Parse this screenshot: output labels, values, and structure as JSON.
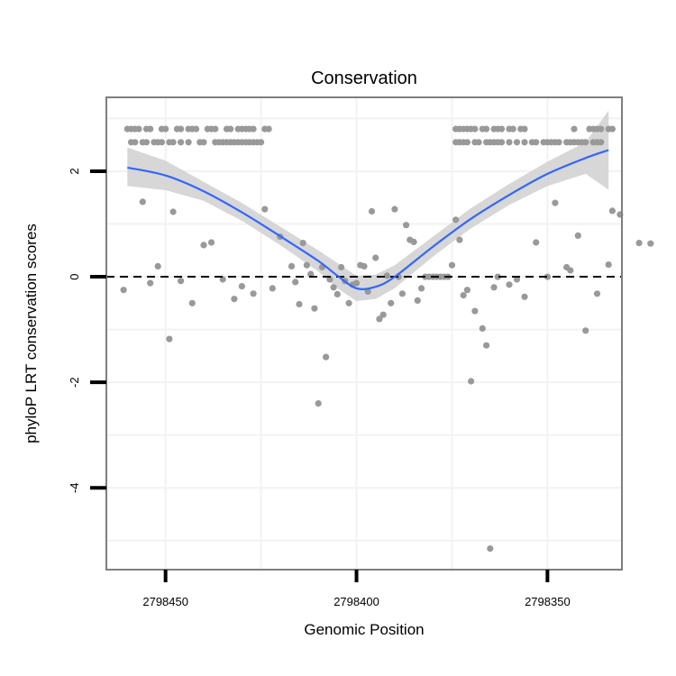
{
  "chart_data": {
    "type": "scatter",
    "title": "Conservation",
    "xlabel": "Genomic Position",
    "ylabel": "phyloP LRT conservation scores",
    "x_reversed": true,
    "xlim": [
      2798465.5,
      2798330.5
    ],
    "ylim": [
      -5.55,
      3.4
    ],
    "x_ticks": [
      2798450,
      2798400,
      2798350
    ],
    "x_tick_labels": [
      "2798450",
      "2798400",
      "2798350"
    ],
    "y_ticks": [
      -4,
      -2,
      0,
      2
    ],
    "y_tick_labels": [
      "-4",
      "-2",
      "0",
      "2"
    ],
    "reference_line": {
      "y": 0,
      "style": "dashed"
    },
    "colors": {
      "points": "#999999",
      "smooth": "#3366ff",
      "band": "#d3d3d3",
      "panel_border": "#7f7f7f",
      "grid": "#f2f2f2"
    },
    "smooth_x": [
      2798460,
      2798450,
      2798440,
      2798430,
      2798420,
      2798410,
      2798405,
      2798400,
      2798395,
      2798390,
      2798380,
      2798370,
      2798360,
      2798350,
      2798340,
      2798334
    ],
    "smooth_y": [
      2.07,
      1.92,
      1.62,
      1.22,
      0.77,
      0.3,
      0.02,
      -0.22,
      -0.19,
      0.0,
      0.57,
      1.1,
      1.55,
      1.95,
      2.25,
      2.4
    ],
    "band_upper": [
      2.45,
      2.2,
      1.8,
      1.4,
      0.95,
      0.5,
      0.26,
      0.02,
      0.04,
      0.22,
      0.76,
      1.3,
      1.76,
      2.18,
      2.55,
      3.15
    ],
    "band_lower": [
      1.72,
      1.64,
      1.44,
      1.06,
      0.6,
      0.1,
      -0.22,
      -0.46,
      -0.42,
      -0.22,
      0.38,
      0.92,
      1.36,
      1.72,
      1.95,
      1.65
    ],
    "points": [
      [
        2798460,
        2.8
      ],
      [
        2798459,
        2.8
      ],
      [
        2798458,
        2.8
      ],
      [
        2798457,
        2.8
      ],
      [
        2798455,
        2.8
      ],
      [
        2798454,
        2.8
      ],
      [
        2798451,
        2.8
      ],
      [
        2798450,
        2.8
      ],
      [
        2798447,
        2.8
      ],
      [
        2798446,
        2.8
      ],
      [
        2798444,
        2.8
      ],
      [
        2798443,
        2.8
      ],
      [
        2798442,
        2.8
      ],
      [
        2798439,
        2.8
      ],
      [
        2798438,
        2.8
      ],
      [
        2798437,
        2.8
      ],
      [
        2798434,
        2.8
      ],
      [
        2798433,
        2.8
      ],
      [
        2798431,
        2.8
      ],
      [
        2798430,
        2.8
      ],
      [
        2798429,
        2.8
      ],
      [
        2798428,
        2.8
      ],
      [
        2798427,
        2.8
      ],
      [
        2798424,
        2.8
      ],
      [
        2798423,
        2.8
      ],
      [
        2798459,
        2.55
      ],
      [
        2798458,
        2.55
      ],
      [
        2798456,
        2.55
      ],
      [
        2798455,
        2.55
      ],
      [
        2798453,
        2.55
      ],
      [
        2798452,
        2.55
      ],
      [
        2798451,
        2.55
      ],
      [
        2798449,
        2.55
      ],
      [
        2798448,
        2.55
      ],
      [
        2798446,
        2.55
      ],
      [
        2798444,
        2.55
      ],
      [
        2798441,
        2.55
      ],
      [
        2798440,
        2.55
      ],
      [
        2798437,
        2.55
      ],
      [
        2798436,
        2.55
      ],
      [
        2798435,
        2.55
      ],
      [
        2798434,
        2.55
      ],
      [
        2798433,
        2.55
      ],
      [
        2798432,
        2.55
      ],
      [
        2798431,
        2.55
      ],
      [
        2798430,
        2.55
      ],
      [
        2798429,
        2.55
      ],
      [
        2798428,
        2.55
      ],
      [
        2798427,
        2.55
      ],
      [
        2798426,
        2.55
      ],
      [
        2798425,
        2.55
      ],
      [
        2798374,
        2.8
      ],
      [
        2798373,
        2.8
      ],
      [
        2798372,
        2.8
      ],
      [
        2798371,
        2.8
      ],
      [
        2798370,
        2.8
      ],
      [
        2798369,
        2.8
      ],
      [
        2798367,
        2.8
      ],
      [
        2798366,
        2.8
      ],
      [
        2798364,
        2.8
      ],
      [
        2798363,
        2.8
      ],
      [
        2798362,
        2.8
      ],
      [
        2798360,
        2.8
      ],
      [
        2798359,
        2.8
      ],
      [
        2798357,
        2.8
      ],
      [
        2798356,
        2.8
      ],
      [
        2798343,
        2.8
      ],
      [
        2798339,
        2.8
      ],
      [
        2798338,
        2.8
      ],
      [
        2798337,
        2.8
      ],
      [
        2798336,
        2.8
      ],
      [
        2798334,
        2.8
      ],
      [
        2798333,
        2.8
      ],
      [
        2798374,
        2.55
      ],
      [
        2798373,
        2.55
      ],
      [
        2798372,
        2.55
      ],
      [
        2798371,
        2.55
      ],
      [
        2798369,
        2.55
      ],
      [
        2798368,
        2.55
      ],
      [
        2798366,
        2.55
      ],
      [
        2798365,
        2.55
      ],
      [
        2798364,
        2.55
      ],
      [
        2798363,
        2.55
      ],
      [
        2798362,
        2.55
      ],
      [
        2798360,
        2.55
      ],
      [
        2798358,
        2.55
      ],
      [
        2798356,
        2.55
      ],
      [
        2798354,
        2.55
      ],
      [
        2798353,
        2.55
      ],
      [
        2798351,
        2.55
      ],
      [
        2798350,
        2.55
      ],
      [
        2798349,
        2.55
      ],
      [
        2798348,
        2.55
      ],
      [
        2798347,
        2.55
      ],
      [
        2798345,
        2.55
      ],
      [
        2798344,
        2.55
      ],
      [
        2798343,
        2.55
      ],
      [
        2798342,
        2.55
      ],
      [
        2798341,
        2.55
      ],
      [
        2798340,
        2.55
      ],
      [
        2798338,
        2.55
      ],
      [
        2798337,
        2.55
      ],
      [
        2798336,
        2.55
      ],
      [
        2798461,
        -0.25
      ],
      [
        2798456,
        1.42
      ],
      [
        2798454,
        -0.12
      ],
      [
        2798452,
        0.2
      ],
      [
        2798449,
        -1.18
      ],
      [
        2798448,
        1.23
      ],
      [
        2798446,
        -0.08
      ],
      [
        2798443,
        -0.5
      ],
      [
        2798440,
        0.6
      ],
      [
        2798438,
        0.65
      ],
      [
        2798435,
        -0.05
      ],
      [
        2798432,
        -0.42
      ],
      [
        2798430,
        -0.18
      ],
      [
        2798427,
        -0.32
      ],
      [
        2798424,
        1.28
      ],
      [
        2798422,
        -0.22
      ],
      [
        2798420,
        0.76
      ],
      [
        2798417,
        0.2
      ],
      [
        2798416,
        -0.1
      ],
      [
        2798415,
        -0.52
      ],
      [
        2798414,
        0.64
      ],
      [
        2798413,
        0.22
      ],
      [
        2798412,
        0.05
      ],
      [
        2798411,
        -0.6
      ],
      [
        2798410,
        -2.4
      ],
      [
        2798409,
        0.18
      ],
      [
        2798408,
        -1.52
      ],
      [
        2798407,
        -0.05
      ],
      [
        2798406,
        -0.2
      ],
      [
        2798405,
        -0.33
      ],
      [
        2798404,
        0.18
      ],
      [
        2798403,
        -0.08
      ],
      [
        2798402,
        -0.5
      ],
      [
        2798401,
        -0.15
      ],
      [
        2798400,
        -0.12
      ],
      [
        2798399,
        0.22
      ],
      [
        2798398,
        0.2
      ],
      [
        2798397,
        -0.28
      ],
      [
        2798396,
        1.24
      ],
      [
        2798395,
        0.36
      ],
      [
        2798394,
        -0.8
      ],
      [
        2798393,
        -0.72
      ],
      [
        2798392,
        0.02
      ],
      [
        2798391,
        -0.5
      ],
      [
        2798390,
        1.28
      ],
      [
        2798389,
        0.0
      ],
      [
        2798388,
        -0.32
      ],
      [
        2798387,
        0.98
      ],
      [
        2798386,
        0.7
      ],
      [
        2798385,
        0.66
      ],
      [
        2798384,
        -0.45
      ],
      [
        2798383,
        -0.22
      ],
      [
        2798382,
        0.0
      ],
      [
        2798381,
        0.0
      ],
      [
        2798380,
        0.0
      ],
      [
        2798379,
        0.0
      ],
      [
        2798378,
        0.0
      ],
      [
        2798377,
        0.0
      ],
      [
        2798376,
        0.0
      ],
      [
        2798375,
        0.22
      ],
      [
        2798374,
        1.08
      ],
      [
        2798373,
        0.7
      ],
      [
        2798372,
        -0.35
      ],
      [
        2798371,
        -0.25
      ],
      [
        2798370,
        -1.98
      ],
      [
        2798369,
        -0.65
      ],
      [
        2798367,
        -0.98
      ],
      [
        2798366,
        -1.3
      ],
      [
        2798365,
        -5.15
      ],
      [
        2798364,
        -0.2
      ],
      [
        2798363,
        0.0
      ],
      [
        2798360,
        -0.15
      ],
      [
        2798358,
        -0.05
      ],
      [
        2798356,
        -0.38
      ],
      [
        2798353,
        0.65
      ],
      [
        2798350,
        0.0
      ],
      [
        2798348,
        1.4
      ],
      [
        2798345,
        0.18
      ],
      [
        2798344,
        0.12
      ],
      [
        2798342,
        0.78
      ],
      [
        2798340,
        -1.02
      ],
      [
        2798337,
        -0.32
      ],
      [
        2798334,
        0.23
      ],
      [
        2798333,
        1.25
      ],
      [
        2798331,
        1.18
      ],
      [
        2798326,
        0.64
      ],
      [
        2798323,
        0.63
      ]
    ]
  }
}
